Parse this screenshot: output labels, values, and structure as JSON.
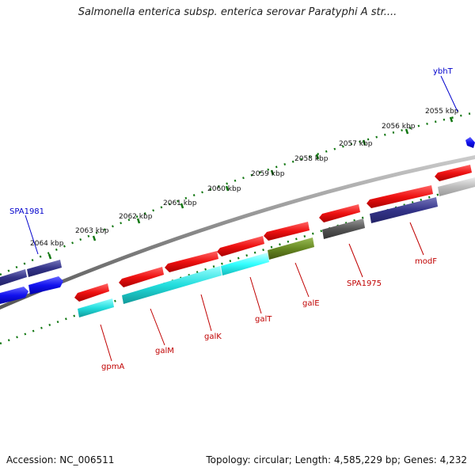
{
  "title": "Salmonella enterica subsp. enterica serovar Paratyphi A str....",
  "footer": {
    "accession": "Accession: NC_006511",
    "topology": "Topology: circular; Length: 4,585,229 bp; Genes: 4,232"
  },
  "kbp_ticks": [
    "2055 kbp",
    "2056 kbp",
    "2057 kbp",
    "2058 kbp",
    "2059 kbp",
    "2060 kbp",
    "2061 kbp",
    "2062 kbp",
    "2063 kbp",
    "2064 kbp"
  ],
  "gene_labels": {
    "ybhT": "ybhT",
    "SPA1981": "SPA1981",
    "gpmA": "gpmA",
    "galM": "galM",
    "galK": "galK",
    "galT": "galT",
    "galE": "galE",
    "SPA1975": "SPA1975",
    "modF": "modF"
  },
  "colors": {
    "forward_cds": "#ee1111",
    "reverse_cds": "#1111ee",
    "cyan_feature": "#22cccc",
    "olive_feature": "#668822",
    "gray_feature": "#666666",
    "navy_feature": "#333388",
    "backbone": "#888888",
    "tick_green": "#117711"
  }
}
